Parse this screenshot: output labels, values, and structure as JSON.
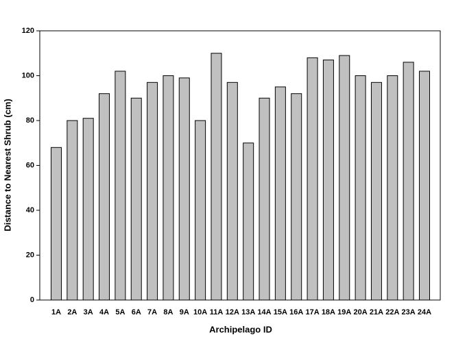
{
  "chart_data": {
    "type": "bar",
    "xlabel": "Archipelago ID",
    "ylabel": "Distance to Nearest Shrub (cm)",
    "categories": [
      "1A",
      "2A",
      "3A",
      "4A",
      "5A",
      "6A",
      "7A",
      "8A",
      "9A",
      "10A",
      "11A",
      "12A",
      "13A",
      "14A",
      "15A",
      "16A",
      "17A",
      "18A",
      "19A",
      "20A",
      "21A",
      "22A",
      "23A",
      "24A"
    ],
    "values": [
      68,
      80,
      81,
      92,
      102,
      90,
      97,
      100,
      99,
      80,
      110,
      97,
      70,
      90,
      95,
      92,
      108,
      107,
      109,
      100,
      97,
      100,
      106,
      102
    ],
    "color": "#c0c0c0",
    "ylim": [
      0,
      120
    ],
    "yticks": [
      0,
      20,
      40,
      60,
      80,
      100,
      120
    ],
    "grid": false
  }
}
